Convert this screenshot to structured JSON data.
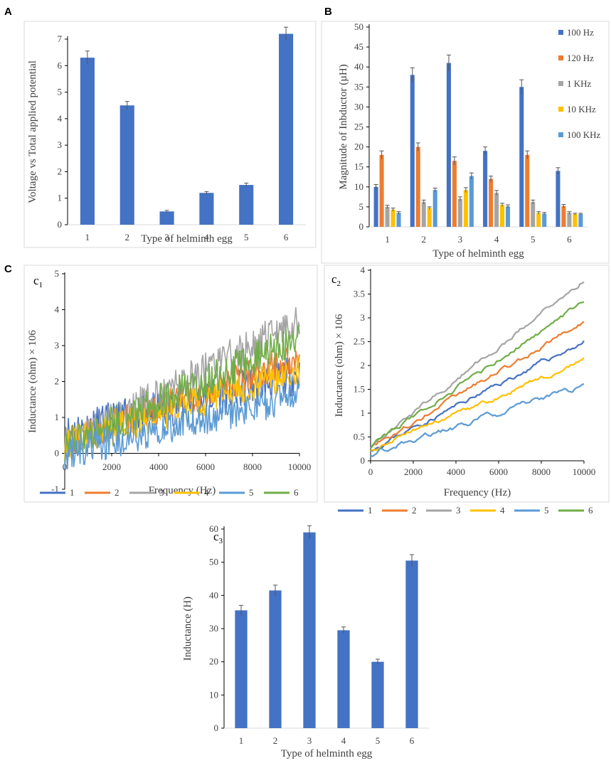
{
  "figure": {
    "panel_A_letter": "A",
    "panel_B_letter": "B",
    "panel_C_letter": "C",
    "c1_label_main": "c",
    "c1_label_sub": "1",
    "c2_label_main": "c",
    "c2_label_sub": "2",
    "c3_label_main": "c",
    "c3_label_sub": "3"
  },
  "colors": {
    "bar_blue": "#4472c4",
    "s100Hz": "#4472c4",
    "s120Hz": "#ed7d31",
    "s1KHz": "#a5a5a5",
    "s10KHz": "#ffc000",
    "s100KHz": "#5b9bd5",
    "line1": "#4472c4",
    "line2": "#ed7d31",
    "line3": "#a5a5a5",
    "line4": "#ffc000",
    "line5": "#5b9bd5",
    "line6": "#70ad47"
  },
  "chart_data": [
    {
      "id": "A",
      "type": "bar",
      "categories": [
        "1",
        "2",
        "3",
        "4",
        "5",
        "6"
      ],
      "values": [
        6.3,
        4.5,
        0.5,
        1.2,
        1.5,
        7.2
      ],
      "errors": [
        0.25,
        0.15,
        0.04,
        0.05,
        0.07,
        0.25
      ],
      "xlabel": "Type of helminth egg",
      "ylabel": "Voltage vs Total applied potential",
      "ylim": [
        0,
        7
      ],
      "yticks": [
        "0",
        "1",
        "2",
        "3",
        "4",
        "5",
        "6",
        "7"
      ]
    },
    {
      "id": "B",
      "type": "bar",
      "categories": [
        "1",
        "2",
        "3",
        "4",
        "5",
        "6"
      ],
      "series": [
        {
          "name": "100 Hz",
          "values": [
            10,
            38,
            41,
            19,
            35,
            14
          ],
          "errors": [
            0.6,
            1.8,
            2.0,
            1.0,
            1.8,
            0.8
          ]
        },
        {
          "name": "120 Hz",
          "values": [
            18,
            20,
            16.5,
            12,
            18,
            5.2
          ],
          "errors": [
            1.0,
            1.0,
            1.0,
            0.7,
            1.0,
            0.4
          ]
        },
        {
          "name": "1 KHz",
          "values": [
            5,
            6.2,
            7,
            8.5,
            6.2,
            3.5
          ],
          "errors": [
            0.4,
            0.5,
            0.5,
            0.6,
            0.5,
            0.3
          ]
        },
        {
          "name": "10 KHz",
          "values": [
            4.3,
            4.7,
            9.2,
            5.5,
            3.5,
            3.2
          ],
          "errors": [
            0.4,
            0.3,
            0.6,
            0.4,
            0.3,
            0.2
          ]
        },
        {
          "name": "100 KHz",
          "values": [
            3.5,
            9.2,
            12.7,
            5.1,
            3.3,
            3.2
          ],
          "errors": [
            0.3,
            0.5,
            0.8,
            0.4,
            0.3,
            0.2
          ]
        }
      ],
      "xlabel": "Type of helminth egg",
      "ylabel": "Magnitude of Inbductor (µH)",
      "ylim": [
        0,
        50
      ],
      "yticks": [
        "0",
        "5",
        "10",
        "15",
        "20",
        "25",
        "30",
        "35",
        "40",
        "45",
        "50"
      ]
    },
    {
      "id": "c1",
      "type": "line",
      "x": [
        0,
        10000
      ],
      "series": [
        {
          "name": "1",
          "start": 0.55,
          "end": 2.2,
          "noise": 0.55
        },
        {
          "name": "2",
          "start": 0.3,
          "end": 2.7,
          "noise": 0.45
        },
        {
          "name": "3",
          "start": 0.25,
          "end": 3.7,
          "noise": 0.5
        },
        {
          "name": "4",
          "start": 0.25,
          "end": 2.3,
          "noise": 0.45
        },
        {
          "name": "5",
          "start": 0.0,
          "end": 1.6,
          "noise": 0.45
        },
        {
          "name": "6",
          "start": 0.25,
          "end": 3.2,
          "noise": 0.5
        }
      ],
      "xlabel": "Frequency (Hz)",
      "ylabel": "Inductance (ohm) × 106",
      "xlim": [
        0,
        10000
      ],
      "ylim": [
        -1,
        5
      ],
      "xticks": [
        "0",
        "2000",
        "4000",
        "6000",
        "8000",
        "10000"
      ],
      "yticks": [
        "-1",
        "0",
        "1",
        "2",
        "3",
        "4",
        "5"
      ]
    },
    {
      "id": "c2",
      "type": "line",
      "x": [
        0,
        10000
      ],
      "series": [
        {
          "name": "1",
          "start": 0.25,
          "end": 2.5,
          "noise": 0.06
        },
        {
          "name": "2",
          "start": 0.3,
          "end": 2.9,
          "noise": 0.06
        },
        {
          "name": "3",
          "start": 0.3,
          "end": 3.8,
          "noise": 0.06
        },
        {
          "name": "4",
          "start": 0.25,
          "end": 2.1,
          "noise": 0.06
        },
        {
          "name": "5",
          "start": 0.15,
          "end": 1.55,
          "noise": 0.07
        },
        {
          "name": "6",
          "start": 0.3,
          "end": 3.35,
          "noise": 0.06
        }
      ],
      "xlabel": "Frequency (Hz)",
      "ylabel": "Inductance (ohm) × 106",
      "xlim": [
        0,
        10000
      ],
      "ylim": [
        0,
        4
      ],
      "xticks": [
        "0",
        "2000",
        "4000",
        "6000",
        "8000",
        "10000"
      ],
      "yticks": [
        "0",
        "0.5",
        "1",
        "1.5",
        "2",
        "2.5",
        "3",
        "3.5",
        "4"
      ]
    },
    {
      "id": "c3",
      "type": "bar",
      "categories": [
        "1",
        "2",
        "3",
        "4",
        "5",
        "6"
      ],
      "values": [
        35.5,
        41.5,
        59,
        29.5,
        20,
        50.5
      ],
      "errors": [
        1.5,
        1.6,
        2.0,
        1.0,
        0.8,
        1.8
      ],
      "xlabel": "Type of helminth egg",
      "ylabel": "Inductance (H)",
      "ylim": [
        0,
        60
      ],
      "yticks": [
        "0",
        "10",
        "20",
        "30",
        "40",
        "50",
        "60"
      ]
    }
  ]
}
